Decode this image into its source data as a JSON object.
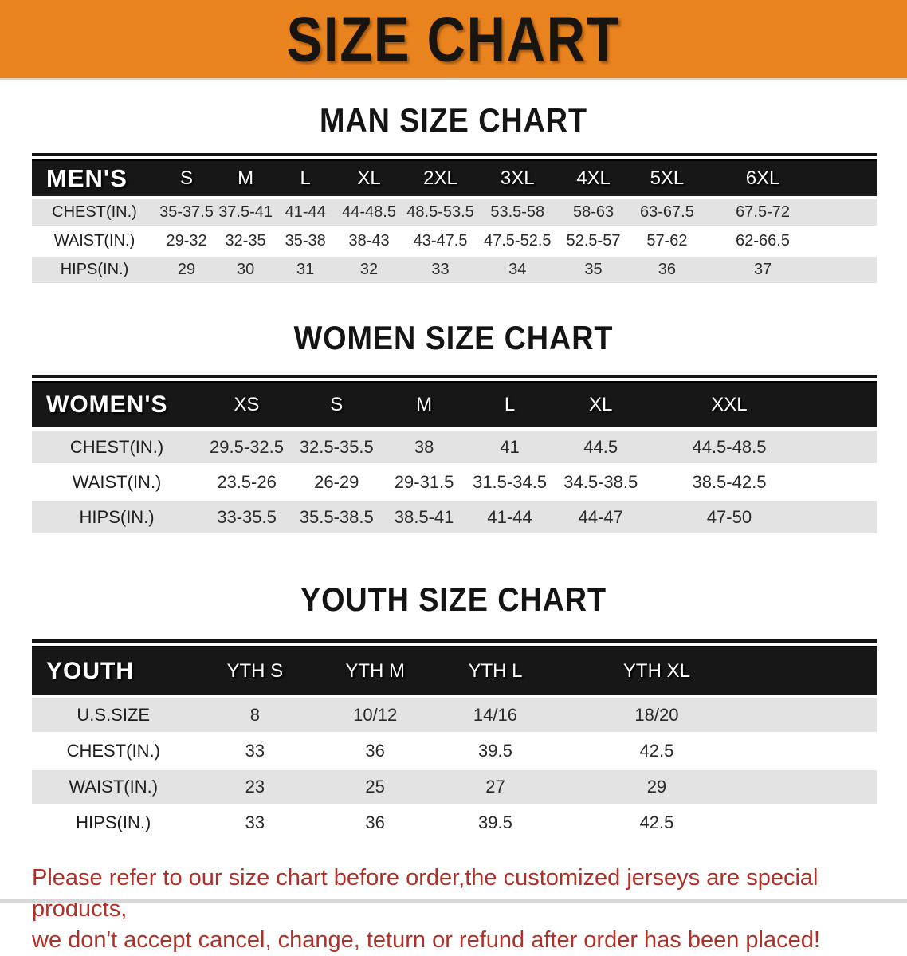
{
  "banner": {
    "title": "SIZE CHART"
  },
  "sections": [
    {
      "heading": "MAN SIZE CHART",
      "header_label": "MEN'S",
      "columns": [
        "S",
        "M",
        "L",
        "XL",
        "2XL",
        "3XL",
        "4XL",
        "5XL",
        "6XL"
      ],
      "rows": [
        {
          "label": "CHEST(IN.)",
          "values": [
            "35-37.5",
            "37.5-41",
            "41-44",
            "44-48.5",
            "48.5-53.5",
            "53.5-58",
            "58-63",
            "63-67.5",
            "67.5-72"
          ]
        },
        {
          "label": "WAIST(IN.)",
          "values": [
            "29-32",
            "32-35",
            "35-38",
            "38-43",
            "43-47.5",
            "47.5-52.5",
            "52.5-57",
            "57-62",
            "62-66.5"
          ]
        },
        {
          "label": "HIPS(IN.)",
          "values": [
            "29",
            "30",
            "31",
            "32",
            "33",
            "34",
            "35",
            "36",
            "37"
          ]
        }
      ]
    },
    {
      "heading": "WOMEN SIZE CHART",
      "header_label": "WOMEN'S",
      "columns": [
        "XS",
        "S",
        "M",
        "L",
        "XL",
        "XXL"
      ],
      "rows": [
        {
          "label": "CHEST(IN.)",
          "values": [
            "29.5-32.5",
            "32.5-35.5",
            "38",
            "41",
            "44.5",
            "44.5-48.5"
          ]
        },
        {
          "label": "WAIST(IN.)",
          "values": [
            "23.5-26",
            "26-29",
            "29-31.5",
            "31.5-34.5",
            "34.5-38.5",
            "38.5-42.5"
          ]
        },
        {
          "label": "HIPS(IN.)",
          "values": [
            "33-35.5",
            "35.5-38.5",
            "38.5-41",
            "41-44",
            "44-47",
            "47-50"
          ]
        }
      ]
    },
    {
      "heading": "YOUTH SIZE CHART",
      "header_label": "YOUTH",
      "columns": [
        "YTH S",
        "YTH M",
        "YTH L",
        "YTH XL"
      ],
      "rows": [
        {
          "label": "U.S.SIZE",
          "values": [
            "8",
            "10/12",
            "14/16",
            "18/20"
          ]
        },
        {
          "label": "CHEST(IN.)",
          "values": [
            "33",
            "36",
            "39.5",
            "42.5"
          ]
        },
        {
          "label": "WAIST(IN.)",
          "values": [
            "23",
            "25",
            "27",
            "29"
          ]
        },
        {
          "label": "HIPS(IN.)",
          "values": [
            "33",
            "36",
            "39.5",
            "42.5"
          ]
        }
      ]
    }
  ],
  "disclaimer": {
    "line1": "Please refer to our size chart before order,the customized jerseys are special products,",
    "line2": "we don't accept cancel, change, teturn or refund after order has been placed!"
  },
  "colors": {
    "banner_orange": "#E8831E",
    "header_black": "#171717",
    "row_gray": "#E3E3E3",
    "disclaimer_red": "#B03028"
  }
}
